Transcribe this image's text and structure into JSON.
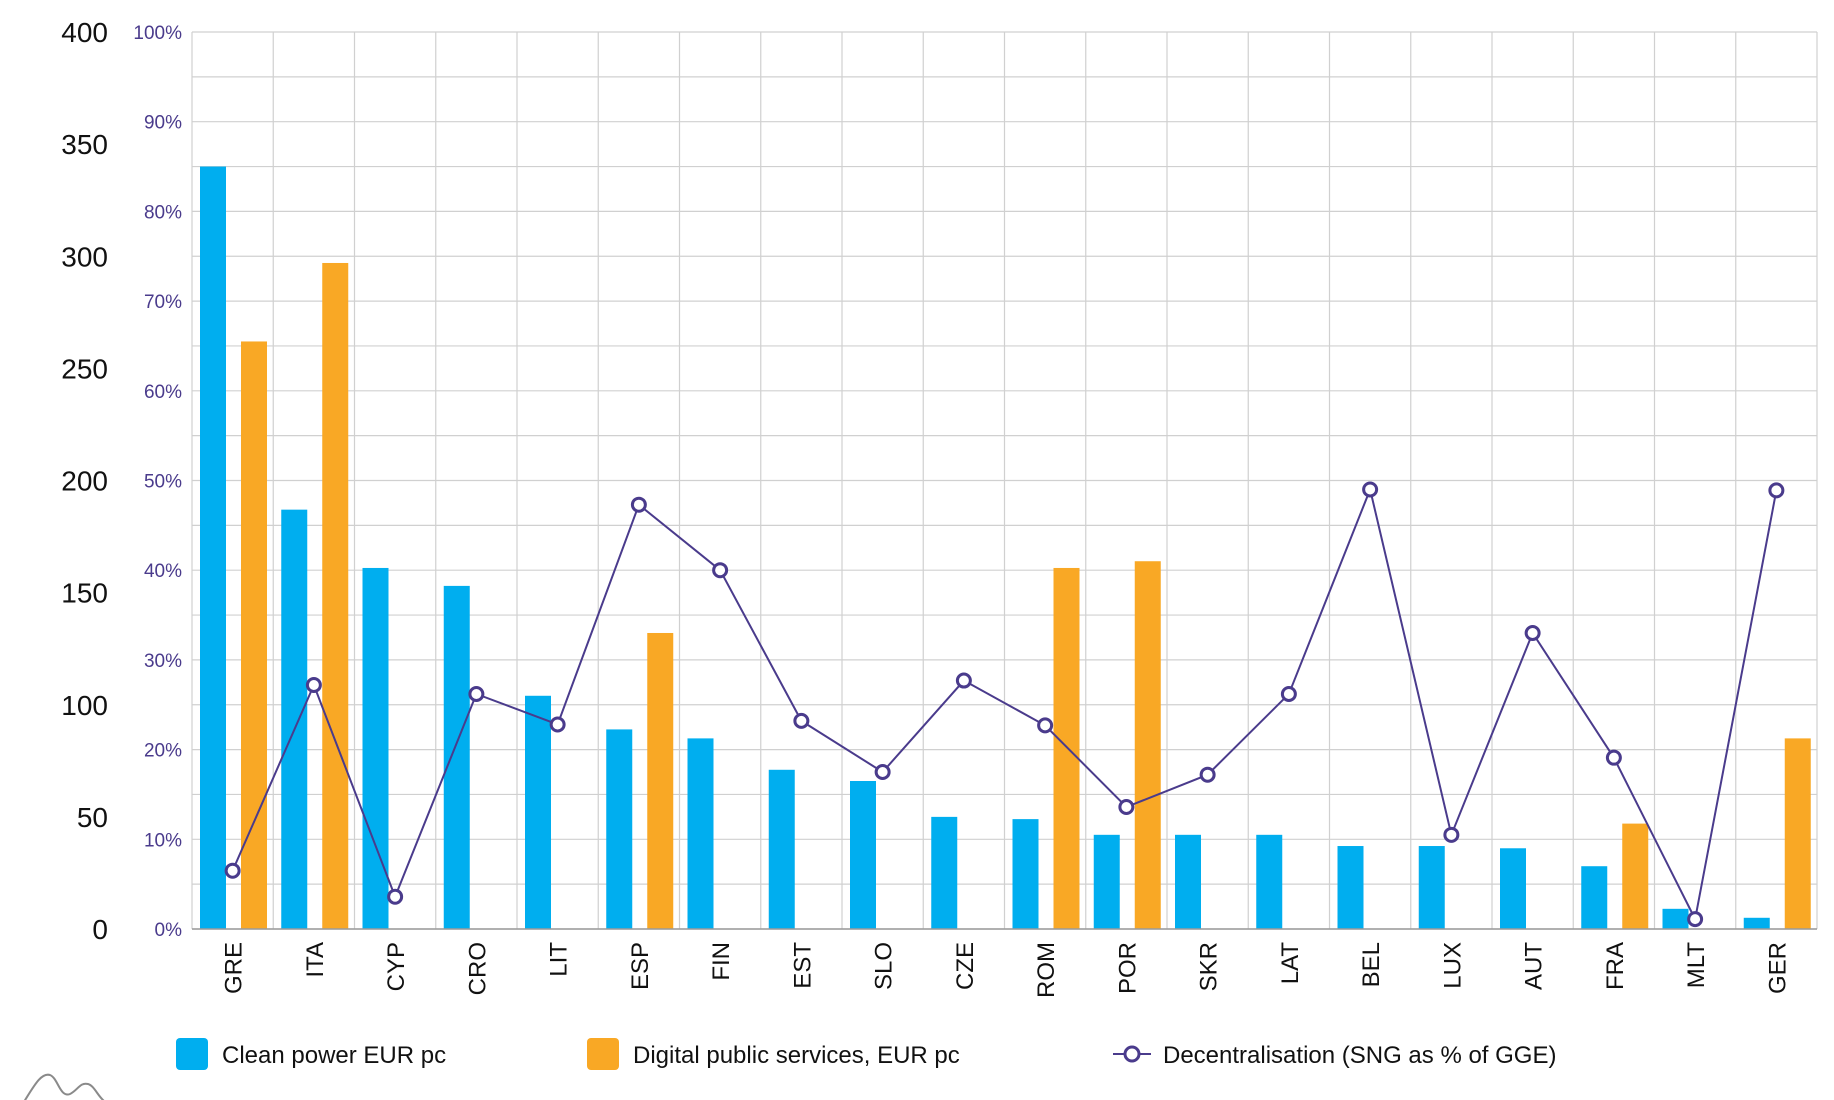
{
  "chart_data": {
    "type": "bar",
    "categories": [
      "GRE",
      "ITA",
      "CYP",
      "CRO",
      "LIT",
      "ESP",
      "FIN",
      "EST",
      "SLO",
      "CZE",
      "ROM",
      "POR",
      "SKR",
      "LAT",
      "BEL",
      "LUX",
      "AUT",
      "FRA",
      "MLT",
      "GER"
    ],
    "series": [
      {
        "name": "Clean power EUR pc",
        "type": "bar",
        "axis": "left",
        "color": "#00aeef",
        "values": [
          340,
          187,
          161,
          153,
          104,
          89,
          85,
          71,
          66,
          50,
          49,
          42,
          42,
          42,
          37,
          37,
          36,
          28,
          9,
          5
        ]
      },
      {
        "name": "Digital public services, EUR pc",
        "type": "bar",
        "axis": "left",
        "color": "#f9a825",
        "values": [
          262,
          297,
          0,
          0,
          0,
          132,
          0,
          0,
          0,
          0,
          161,
          164,
          0,
          0,
          0,
          0,
          0,
          47,
          0,
          85
        ]
      },
      {
        "name": "Decentralisation (SNG as % of GGE)",
        "type": "line",
        "axis": "right",
        "color": "#4a3b8c",
        "values": [
          6.5,
          27.2,
          3.6,
          26.2,
          22.8,
          47.3,
          40.0,
          23.2,
          17.5,
          27.7,
          22.7,
          13.6,
          17.2,
          26.2,
          49.0,
          10.5,
          33.0,
          19.1,
          1.1,
          48.9
        ]
      }
    ],
    "left_axis": {
      "min": 0,
      "max": 400,
      "ticks": [
        "0",
        "50",
        "100",
        "150",
        "200",
        "250",
        "300",
        "350",
        "400"
      ]
    },
    "right_axis": {
      "min": 0,
      "max": 100,
      "ticks": [
        "0%",
        "10%",
        "20%",
        "30%",
        "40%",
        "50%",
        "60%",
        "70%",
        "80%",
        "90%",
        "100%"
      ]
    },
    "grid": true,
    "legend": "bottom",
    "title": "",
    "xlabel": "",
    "ylabel": ""
  },
  "legend": {
    "items": [
      {
        "label": "Clean power EUR pc"
      },
      {
        "label": "Digital public services, EUR pc"
      },
      {
        "label": "Decentralisation (SNG as % of GGE)"
      }
    ]
  }
}
